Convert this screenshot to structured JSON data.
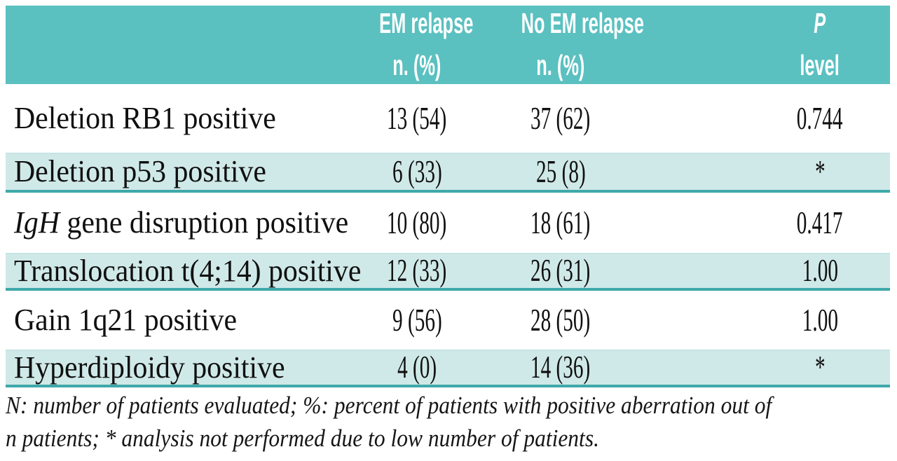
{
  "table": {
    "header": {
      "col2_line1": "EM relapse",
      "col2_line2": "n. (%)",
      "col3_line1": "No EM relapse",
      "col3_line2": "n. (%)",
      "col4_line1": "P",
      "col4_line2": "level"
    },
    "rows": [
      {
        "label_italic": "",
        "label": "Deletion RB1 positive",
        "em_relapse": "13 (54)",
        "no_em_relapse": "37 (62)",
        "p_level": "0.744"
      },
      {
        "label_italic": "",
        "label": "Deletion p53 positive",
        "em_relapse": "6 (33)",
        "no_em_relapse": "25 (8)",
        "p_level": "*"
      },
      {
        "label_italic": "IgH",
        "label": " gene disruption positive",
        "em_relapse": "10 (80)",
        "no_em_relapse": "18 (61)",
        "p_level": "0.417"
      },
      {
        "label_italic": "",
        "label": "Translocation t(4;14) positive",
        "em_relapse": "12 (33)",
        "no_em_relapse": "26 (31)",
        "p_level": "1.00"
      },
      {
        "label_italic": "",
        "label": "Gain 1q21 positive",
        "em_relapse": "9 (56)",
        "no_em_relapse": "28 (50)",
        "p_level": "1.00"
      },
      {
        "label_italic": "",
        "label": "Hyperdiploidy positive",
        "em_relapse": "4 (0)",
        "no_em_relapse": "14 (36)",
        "p_level": "*"
      }
    ]
  },
  "footnote": {
    "line1": "N: number of patients evaluated; %: percent of patients with positive aberration out of",
    "line2": "n patients; * analysis not performed due to low number of patients."
  },
  "colors": {
    "header_bg": "#5bc0c0",
    "header_text": "#ffffff",
    "band_bg": "#cfe9e8",
    "band_rule": "#3fa8aa",
    "body_text": "#101010",
    "page_bg": "#ffffff"
  }
}
